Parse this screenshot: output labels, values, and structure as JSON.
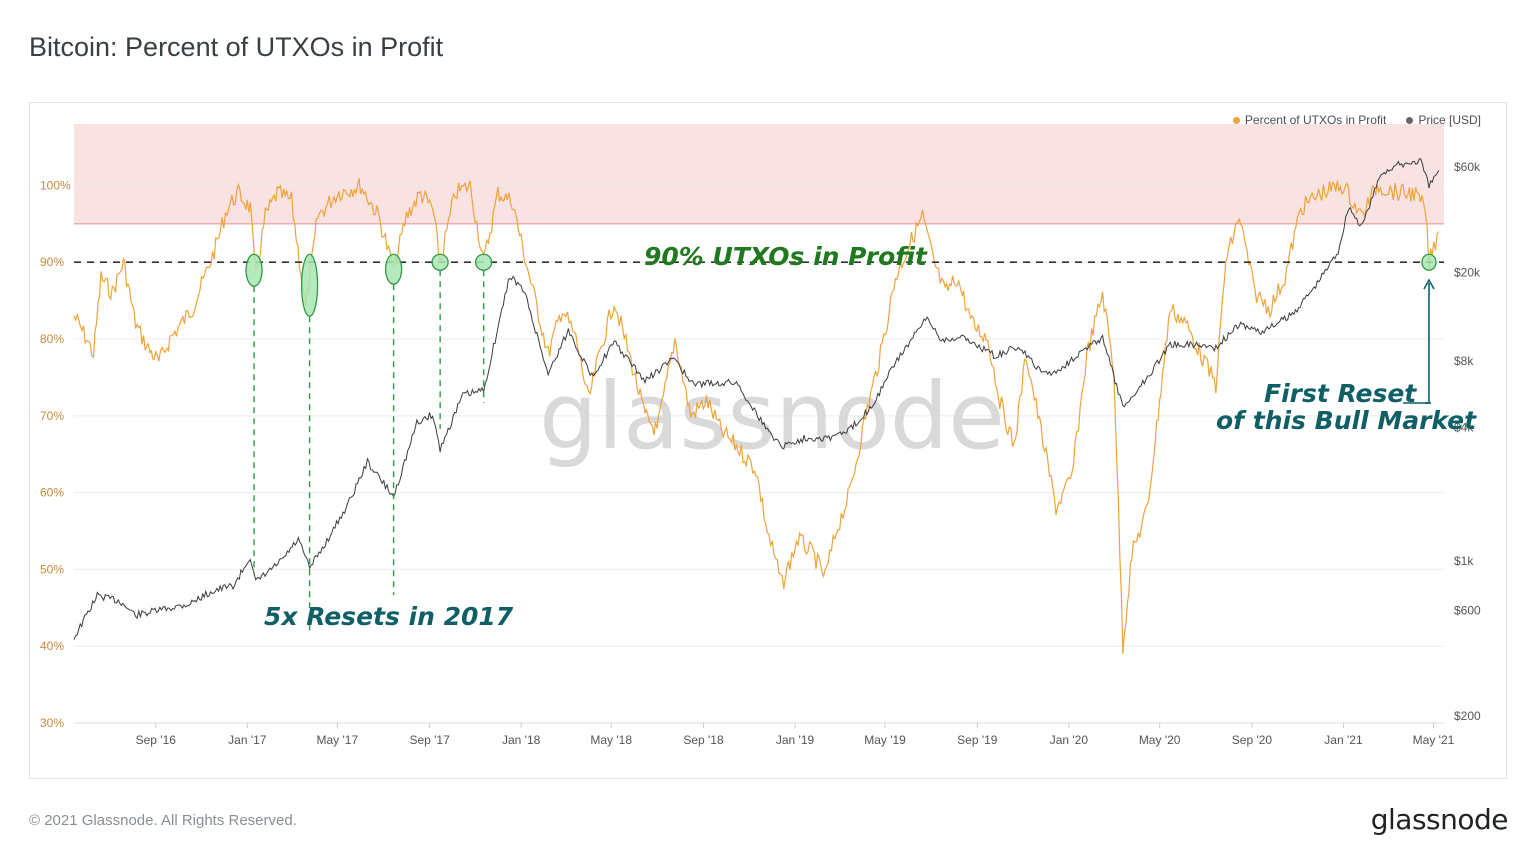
{
  "title": "Bitcoin: Percent of UTXOs in Profit",
  "footer": {
    "copyright": "© 2021 Glassnode. All Rights Reserved.",
    "logo": "glassnode"
  },
  "watermark": "glassnode",
  "legend": [
    {
      "label": "Percent of UTXOs in Profit",
      "color": "#f7931a"
    },
    {
      "label": "Price [USD]",
      "color": "#666666"
    }
  ],
  "annotations": {
    "threshold": "90% UTXOs in Profit",
    "resets_2017": "5x Resets in 2017",
    "first_reset_line1": "First Reset",
    "first_reset_line2": "of this Bull Market"
  },
  "colors": {
    "utxo": "#f0a33a",
    "price": "#3c3c3c",
    "band": "#f8e2e2",
    "band_line": "#e89090",
    "green": "#1f7a1f",
    "teal": "#0f5f66",
    "marker_fill": "#a8e6b4",
    "marker_stroke": "#2e9a45"
  },
  "chart_data": {
    "type": "line",
    "x_range": [
      "2016-05-15",
      "2021-05-15"
    ],
    "x_ticks": [
      {
        "date": "2016-09-01",
        "label": "Sep '16"
      },
      {
        "date": "2017-01-01",
        "label": "Jan '17"
      },
      {
        "date": "2017-05-01",
        "label": "May '17"
      },
      {
        "date": "2017-09-01",
        "label": "Sep '17"
      },
      {
        "date": "2018-01-01",
        "label": "Jan '18"
      },
      {
        "date": "2018-05-01",
        "label": "May '18"
      },
      {
        "date": "2018-09-01",
        "label": "Sep '18"
      },
      {
        "date": "2019-01-01",
        "label": "Jan '19"
      },
      {
        "date": "2019-05-01",
        "label": "May '19"
      },
      {
        "date": "2019-09-01",
        "label": "Sep '19"
      },
      {
        "date": "2020-01-01",
        "label": "Jan '20"
      },
      {
        "date": "2020-05-01",
        "label": "May '20"
      },
      {
        "date": "2020-09-01",
        "label": "Sep '20"
      },
      {
        "date": "2021-01-01",
        "label": "Jan '21"
      },
      {
        "date": "2021-05-01",
        "label": "May '21"
      }
    ],
    "y_left": {
      "ylim": [
        30,
        108
      ],
      "ticks": [
        {
          "value": 30,
          "label": "30%"
        },
        {
          "value": 40,
          "label": "40%"
        },
        {
          "value": 50,
          "label": "50%"
        },
        {
          "value": 60,
          "label": "60%"
        },
        {
          "value": 70,
          "label": "70%"
        },
        {
          "value": 80,
          "label": "80%"
        },
        {
          "value": 90,
          "label": "90%"
        },
        {
          "value": 100,
          "label": "100%"
        }
      ]
    },
    "y_right": {
      "scale": "log",
      "ylim": [
        200,
        60000
      ],
      "ticks": [
        {
          "value": 200,
          "label": "$200"
        },
        {
          "value": 600,
          "label": "$600"
        },
        {
          "value": 1000,
          "label": "$1k"
        },
        {
          "value": 4000,
          "label": "$4k"
        },
        {
          "value": 8000,
          "label": "$8k"
        },
        {
          "value": 20000,
          "label": "$20k"
        },
        {
          "value": 60000,
          "label": "$60k"
        }
      ]
    },
    "highlight_band": {
      "from": 95,
      "to": 108
    },
    "threshold_line": 90,
    "reset_markers": [
      "2017-01-10",
      "2017-03-25",
      "2017-07-15",
      "2017-09-15",
      "2017-11-12",
      "2021-04-25"
    ],
    "series": [
      {
        "name": "Percent of UTXOs in Profit",
        "axis": "left",
        "points": [
          [
            "2016-05-15",
            83
          ],
          [
            "2016-06-01",
            80
          ],
          [
            "2016-06-10",
            78
          ],
          [
            "2016-06-20",
            88
          ],
          [
            "2016-07-05",
            86
          ],
          [
            "2016-07-20",
            90
          ],
          [
            "2016-08-05",
            82
          ],
          [
            "2016-08-20",
            79
          ],
          [
            "2016-09-05",
            77
          ],
          [
            "2016-09-20",
            80
          ],
          [
            "2016-10-05",
            82
          ],
          [
            "2016-10-20",
            84
          ],
          [
            "2016-11-05",
            88
          ],
          [
            "2016-11-20",
            92
          ],
          [
            "2016-12-05",
            97
          ],
          [
            "2016-12-20",
            99
          ],
          [
            "2017-01-05",
            97
          ],
          [
            "2017-01-12",
            88
          ],
          [
            "2017-01-25",
            96
          ],
          [
            "2017-02-10",
            99
          ],
          [
            "2017-03-01",
            98
          ],
          [
            "2017-03-20",
            84
          ],
          [
            "2017-04-05",
            96
          ],
          [
            "2017-05-01",
            99
          ],
          [
            "2017-06-01",
            100
          ],
          [
            "2017-06-25",
            96
          ],
          [
            "2017-07-15",
            89
          ],
          [
            "2017-08-01",
            96
          ],
          [
            "2017-08-20",
            99
          ],
          [
            "2017-09-05",
            97
          ],
          [
            "2017-09-15",
            90
          ],
          [
            "2017-10-05",
            99
          ],
          [
            "2017-10-25",
            100
          ],
          [
            "2017-11-12",
            90
          ],
          [
            "2017-12-01",
            99
          ],
          [
            "2017-12-20",
            98
          ],
          [
            "2018-01-05",
            91
          ],
          [
            "2018-01-20",
            85
          ],
          [
            "2018-02-06",
            78
          ],
          [
            "2018-02-25",
            84
          ],
          [
            "2018-03-15",
            80
          ],
          [
            "2018-04-01",
            72
          ],
          [
            "2018-04-15",
            78
          ],
          [
            "2018-05-05",
            85
          ],
          [
            "2018-05-25",
            78
          ],
          [
            "2018-06-15",
            70
          ],
          [
            "2018-07-01",
            68
          ],
          [
            "2018-07-25",
            80
          ],
          [
            "2018-08-15",
            70
          ],
          [
            "2018-09-05",
            72
          ],
          [
            "2018-09-25",
            68
          ],
          [
            "2018-10-15",
            66
          ],
          [
            "2018-11-10",
            63
          ],
          [
            "2018-11-25",
            55
          ],
          [
            "2018-12-15",
            48
          ],
          [
            "2019-01-05",
            54
          ],
          [
            "2019-01-25",
            52
          ],
          [
            "2019-02-10",
            49
          ],
          [
            "2019-02-25",
            55
          ],
          [
            "2019-03-15",
            60
          ],
          [
            "2019-04-05",
            70
          ],
          [
            "2019-04-25",
            78
          ],
          [
            "2019-05-15",
            88
          ],
          [
            "2019-06-01",
            92
          ],
          [
            "2019-06-20",
            96
          ],
          [
            "2019-07-05",
            90
          ],
          [
            "2019-07-20",
            86
          ],
          [
            "2019-08-05",
            88
          ],
          [
            "2019-08-25",
            82
          ],
          [
            "2019-09-15",
            80
          ],
          [
            "2019-10-01",
            72
          ],
          [
            "2019-10-20",
            66
          ],
          [
            "2019-11-05",
            78
          ],
          [
            "2019-11-25",
            68
          ],
          [
            "2019-12-15",
            58
          ],
          [
            "2020-01-05",
            62
          ],
          [
            "2020-01-25",
            78
          ],
          [
            "2020-02-15",
            86
          ],
          [
            "2020-03-01",
            76
          ],
          [
            "2020-03-13",
            40
          ],
          [
            "2020-03-25",
            52
          ],
          [
            "2020-04-15",
            58
          ],
          [
            "2020-05-01",
            72
          ],
          [
            "2020-05-15",
            84
          ],
          [
            "2020-06-05",
            82
          ],
          [
            "2020-06-25",
            78
          ],
          [
            "2020-07-15",
            74
          ],
          [
            "2020-07-28",
            90
          ],
          [
            "2020-08-15",
            96
          ],
          [
            "2020-09-05",
            86
          ],
          [
            "2020-09-25",
            84
          ],
          [
            "2020-10-15",
            88
          ],
          [
            "2020-11-05",
            97
          ],
          [
            "2020-12-01",
            99
          ],
          [
            "2021-01-01",
            100
          ],
          [
            "2021-01-25",
            96
          ],
          [
            "2021-02-15",
            100
          ],
          [
            "2021-03-15",
            99
          ],
          [
            "2021-04-05",
            99
          ],
          [
            "2021-04-20",
            97
          ],
          [
            "2021-04-25",
            90
          ],
          [
            "2021-05-08",
            94
          ]
        ]
      },
      {
        "name": "Price [USD]",
        "axis": "right",
        "points": [
          [
            "2016-05-15",
            450
          ],
          [
            "2016-06-15",
            700
          ],
          [
            "2016-07-15",
            660
          ],
          [
            "2016-08-05",
            570
          ],
          [
            "2016-09-15",
            610
          ],
          [
            "2016-10-15",
            640
          ],
          [
            "2016-11-15",
            730
          ],
          [
            "2016-12-15",
            780
          ],
          [
            "2017-01-05",
            1050
          ],
          [
            "2017-01-12",
            800
          ],
          [
            "2017-02-15",
            1000
          ],
          [
            "2017-03-10",
            1250
          ],
          [
            "2017-03-25",
            930
          ],
          [
            "2017-04-15",
            1200
          ],
          [
            "2017-05-15",
            1800
          ],
          [
            "2017-06-10",
            2800
          ],
          [
            "2017-07-15",
            1950
          ],
          [
            "2017-08-15",
            4200
          ],
          [
            "2017-09-05",
            4600
          ],
          [
            "2017-09-15",
            3200
          ],
          [
            "2017-10-15",
            5600
          ],
          [
            "2017-11-12",
            5900
          ],
          [
            "2017-12-17",
            19500
          ],
          [
            "2018-01-05",
            16500
          ],
          [
            "2018-02-06",
            7000
          ],
          [
            "2018-03-05",
            11000
          ],
          [
            "2018-04-05",
            6800
          ],
          [
            "2018-05-05",
            9700
          ],
          [
            "2018-06-15",
            6500
          ],
          [
            "2018-07-25",
            8300
          ],
          [
            "2018-08-15",
            6300
          ],
          [
            "2018-10-15",
            6400
          ],
          [
            "2018-11-25",
            3900
          ],
          [
            "2018-12-15",
            3300
          ],
          [
            "2019-01-15",
            3600
          ],
          [
            "2019-02-15",
            3600
          ],
          [
            "2019-03-15",
            3900
          ],
          [
            "2019-04-15",
            5100
          ],
          [
            "2019-05-15",
            7900
          ],
          [
            "2019-06-26",
            12500
          ],
          [
            "2019-07-15",
            10000
          ],
          [
            "2019-08-15",
            10200
          ],
          [
            "2019-09-25",
            8400
          ],
          [
            "2019-10-26",
            9300
          ],
          [
            "2019-11-25",
            7100
          ],
          [
            "2019-12-15",
            7100
          ],
          [
            "2020-01-15",
            8700
          ],
          [
            "2020-02-15",
            10200
          ],
          [
            "2020-03-13",
            4900
          ],
          [
            "2020-04-15",
            6800
          ],
          [
            "2020-05-15",
            9500
          ],
          [
            "2020-06-15",
            9500
          ],
          [
            "2020-07-15",
            9200
          ],
          [
            "2020-08-15",
            11700
          ],
          [
            "2020-09-15",
            10800
          ],
          [
            "2020-10-25",
            13000
          ],
          [
            "2020-11-25",
            17500
          ],
          [
            "2020-12-25",
            25000
          ],
          [
            "2021-01-08",
            40000
          ],
          [
            "2021-01-25",
            32000
          ],
          [
            "2021-02-20",
            56000
          ],
          [
            "2021-03-13",
            61000
          ],
          [
            "2021-04-14",
            64000
          ],
          [
            "2021-04-25",
            49000
          ],
          [
            "2021-05-08",
            58000
          ]
        ]
      }
    ]
  }
}
